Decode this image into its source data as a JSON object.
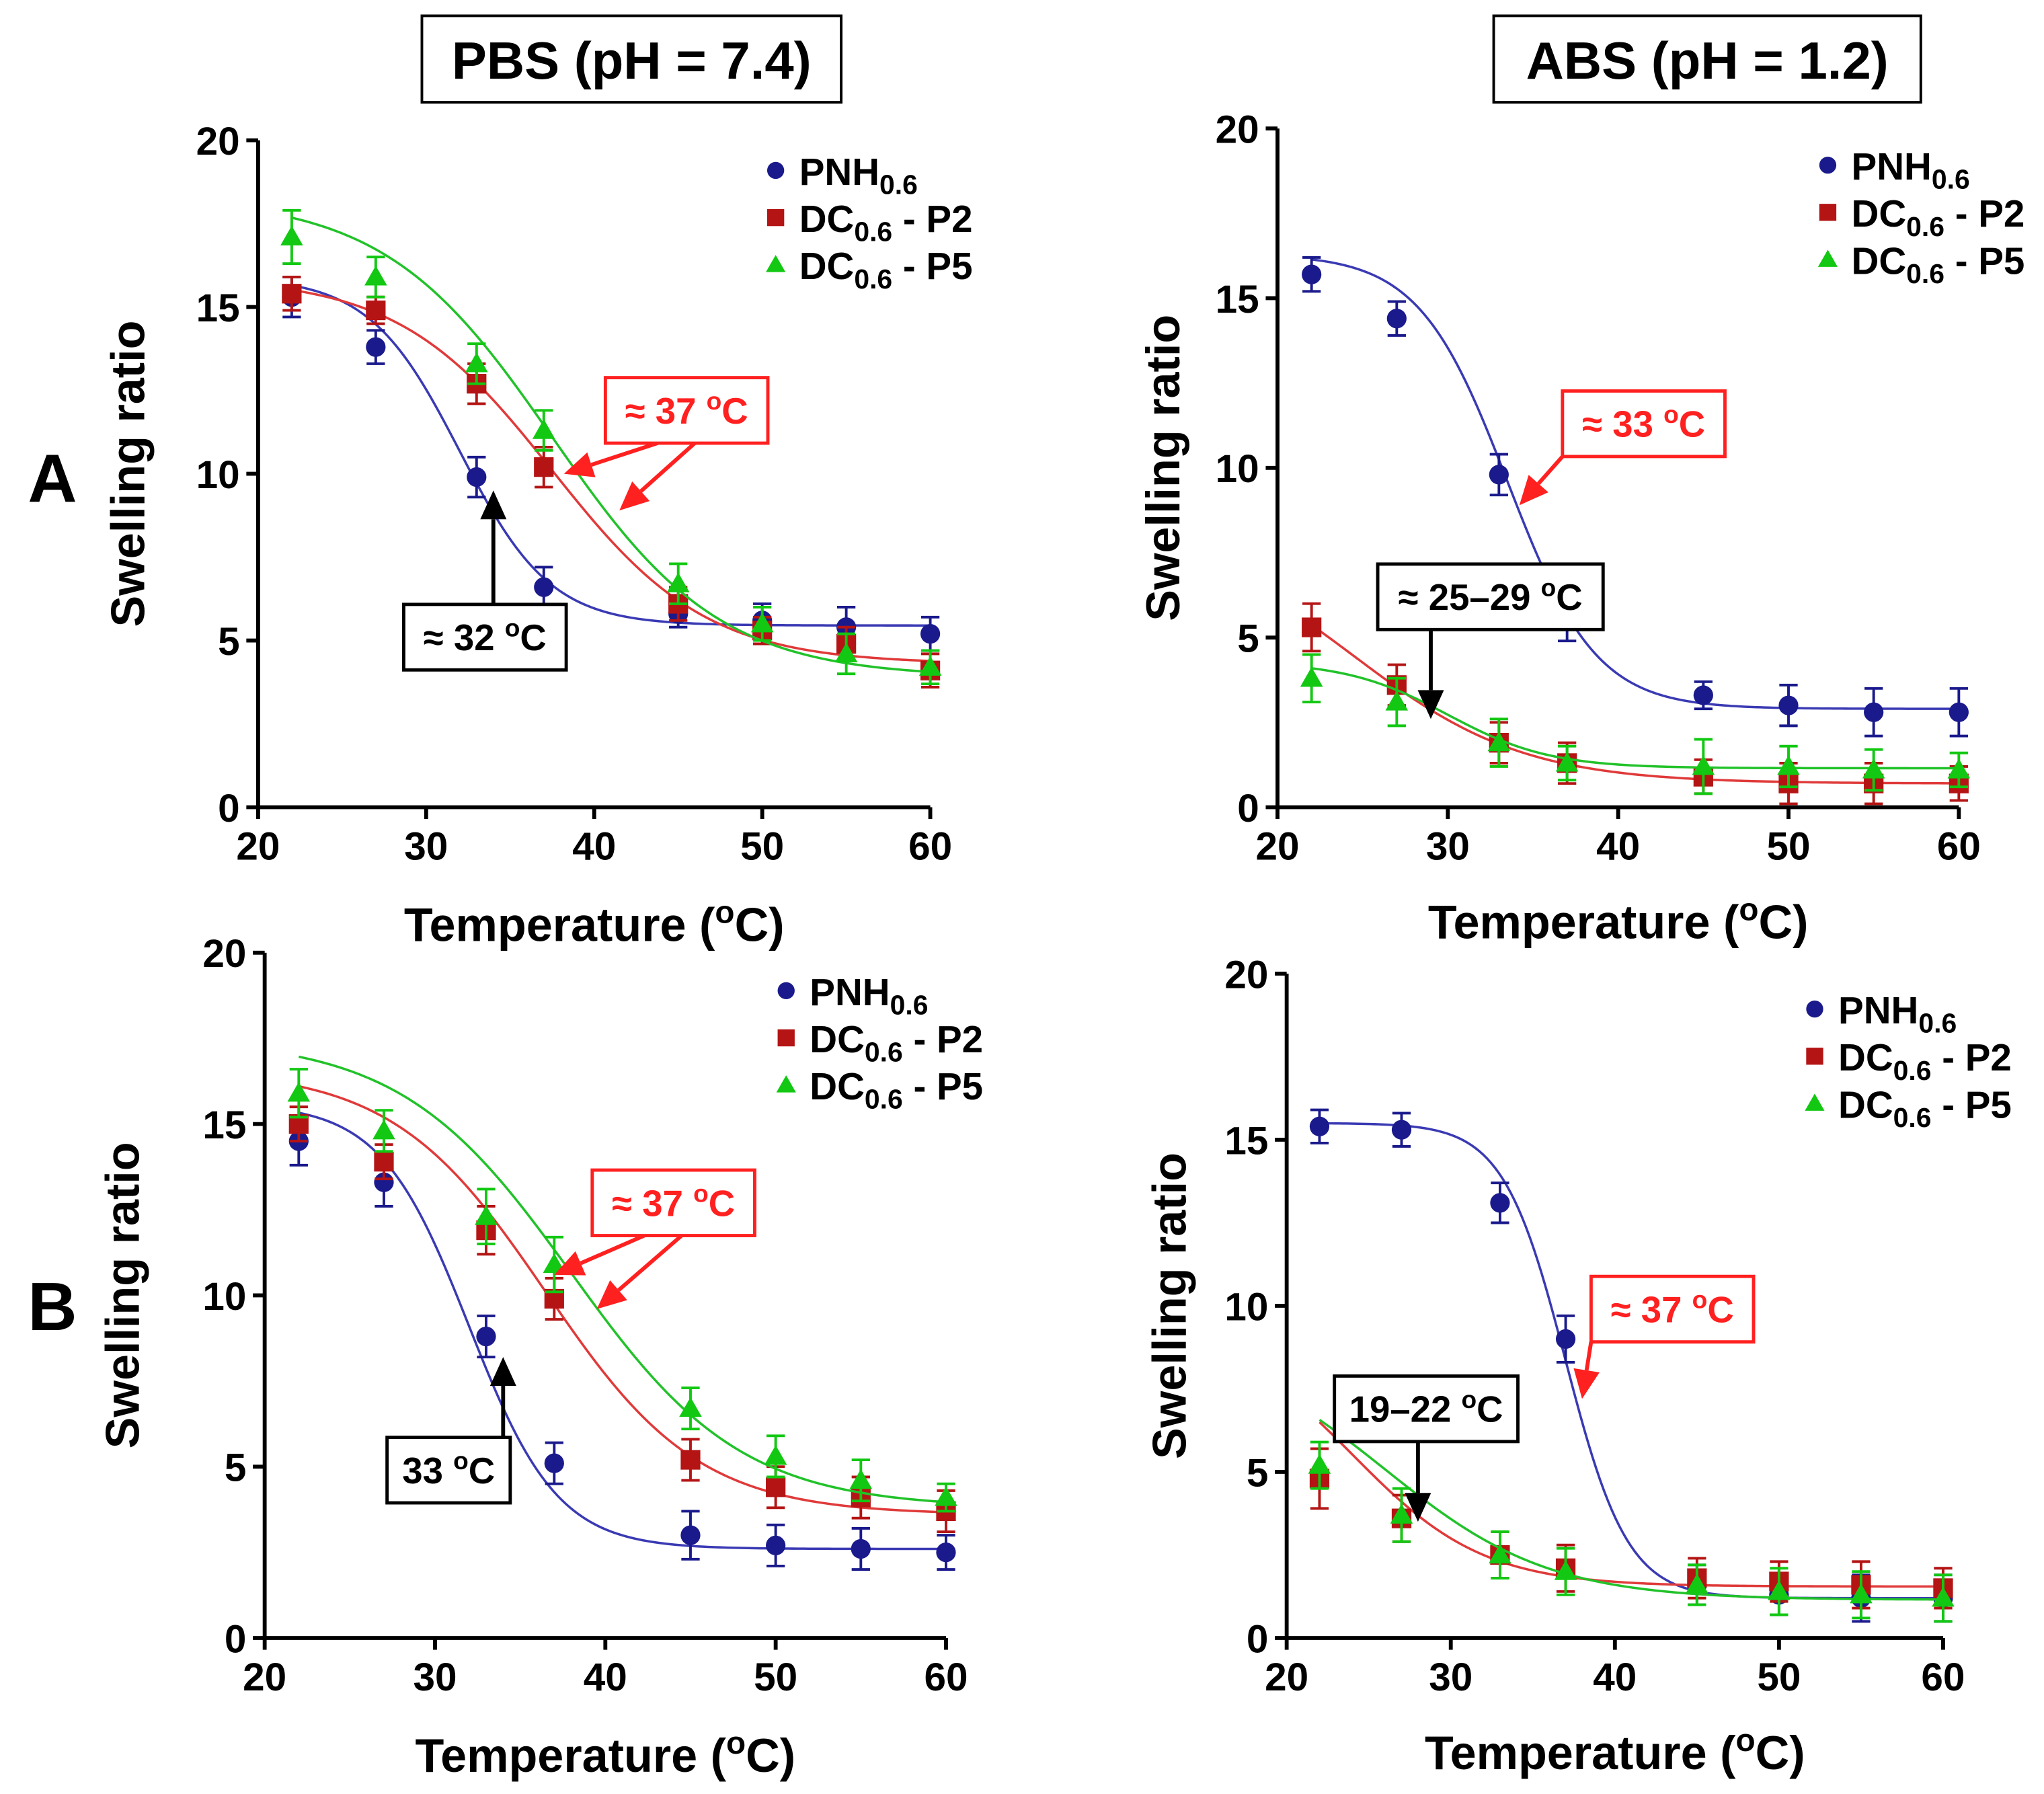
{
  "column_titles": [
    "PBS (pH = 7.4)",
    "ABS (pH = 1.2)"
  ],
  "row_labels": [
    "A",
    "B"
  ],
  "colors": {
    "PNH": "#1a1a8c",
    "P2": "#b41414",
    "P5": "#12c812",
    "annotation_red": "#ff2020",
    "annotation_black": "#000000",
    "curve_PNH": "#3a3ab4",
    "curve_P2": "#e03a3a",
    "curve_P5": "#22c22a"
  },
  "legend_keys": [
    "PNH",
    "P2",
    "P5"
  ],
  "legend": {
    "PNH": {
      "main": "PNH",
      "sub": "0.6",
      "suffix": ""
    },
    "P2": {
      "main": "DC",
      "sub": "0.6",
      "suffix": " - P2"
    },
    "P5": {
      "main": "DC",
      "sub": "0.6",
      "suffix": " - P5"
    }
  },
  "chart_data": [
    {
      "id": "A-PBS",
      "type": "scatter",
      "xlabel": "Temperature (oC)",
      "ylabel": "Swelling ratio",
      "xlim": [
        20,
        60
      ],
      "ylim": [
        0,
        20
      ],
      "xticks": [
        20,
        30,
        40,
        50,
        60
      ],
      "yticks": [
        0,
        5,
        10,
        15,
        20
      ],
      "x": [
        22,
        27,
        33,
        37,
        45,
        50,
        55,
        60
      ],
      "series": [
        {
          "key": "PNH",
          "values": [
            15.3,
            13.8,
            9.9,
            6.6,
            5.8,
            5.6,
            5.4,
            5.2
          ],
          "errors": [
            0.6,
            0.5,
            0.6,
            0.6,
            0.4,
            0.5,
            0.6,
            0.5
          ],
          "fit": {
            "min": 5.45,
            "max": 15.9,
            "x0": 32,
            "slope": 2.7
          }
        },
        {
          "key": "P2",
          "values": [
            15.4,
            14.9,
            12.7,
            10.2,
            6.1,
            5.3,
            4.9,
            4.1
          ],
          "errors": [
            0.5,
            0.4,
            0.6,
            0.6,
            0.5,
            0.4,
            0.5,
            0.5
          ],
          "fit": {
            "min": 4.3,
            "max": 15.9,
            "x0": 37.5,
            "slope": 4.6
          }
        },
        {
          "key": "P5",
          "values": [
            17.1,
            15.9,
            13.3,
            11.3,
            6.7,
            5.5,
            4.6,
            4.2
          ],
          "errors": [
            0.8,
            0.6,
            0.6,
            0.6,
            0.6,
            0.5,
            0.6,
            0.5
          ],
          "fit": {
            "min": 3.9,
            "max": 18.3,
            "x0": 37.5,
            "slope": 5.0
          }
        }
      ],
      "annotations": [
        {
          "text": "≈ 32 oC",
          "color": "black",
          "box": [
            33.5,
            5.1
          ],
          "tip": [
            34,
            9.5
          ]
        },
        {
          "text": "≈ 37 oC",
          "color": "red",
          "box": [
            45.5,
            11.9
          ],
          "tips": [
            [
              38.2,
              10.0
            ],
            [
              41.5,
              8.9
            ]
          ]
        }
      ]
    },
    {
      "id": "A-ABS",
      "type": "scatter",
      "xlabel": "Temperature (oC)",
      "ylabel": "Swelling ratio",
      "xlim": [
        20,
        60
      ],
      "ylim": [
        0,
        20
      ],
      "xticks": [
        20,
        30,
        40,
        50,
        60
      ],
      "yticks": [
        0,
        5,
        10,
        15,
        20
      ],
      "x": [
        22,
        27,
        33,
        37,
        45,
        50,
        55,
        60
      ],
      "series": [
        {
          "key": "PNH",
          "values": [
            15.7,
            14.4,
            9.8,
            5.6,
            3.3,
            3.0,
            2.8,
            2.8
          ],
          "errors": [
            0.5,
            0.5,
            0.6,
            0.7,
            0.4,
            0.6,
            0.7,
            0.7
          ],
          "fit": {
            "min": 2.9,
            "max": 16.3,
            "x0": 33.5,
            "slope": 2.6
          }
        },
        {
          "key": "P2",
          "values": [
            5.3,
            3.6,
            1.9,
            1.3,
            0.9,
            0.7,
            0.7,
            0.7
          ],
          "errors": [
            0.7,
            0.6,
            0.6,
            0.6,
            0.5,
            0.6,
            0.6,
            0.5
          ],
          "fit": {
            "min": 0.7,
            "max": 8.2,
            "x0": 24.5,
            "slope": 5.0
          }
        },
        {
          "key": "P5",
          "values": [
            3.8,
            3.1,
            1.9,
            1.3,
            1.2,
            1.2,
            1.1,
            1.1
          ],
          "errors": [
            0.7,
            0.7,
            0.7,
            0.5,
            0.8,
            0.6,
            0.6,
            0.5
          ],
          "fit": {
            "min": 1.15,
            "max": 4.3,
            "x0": 30.0,
            "slope": 3.0
          }
        }
      ],
      "annotations": [
        {
          "text": "≈ 33 oC",
          "color": "red",
          "box": [
            41.5,
            11.3
          ],
          "tip": [
            34.2,
            8.9
          ]
        },
        {
          "text": "≈ 25–29 oC",
          "color": "black",
          "box": [
            32.5,
            6.2
          ],
          "tip": [
            29.0,
            2.6
          ]
        }
      ]
    },
    {
      "id": "B-PBS",
      "type": "scatter",
      "xlabel": "Temperature (oC)",
      "ylabel": "Swelling ratio",
      "xlim": [
        20,
        60
      ],
      "ylim": [
        0,
        20
      ],
      "xticks": [
        20,
        30,
        40,
        50,
        60
      ],
      "yticks": [
        0,
        5,
        10,
        15,
        20
      ],
      "x": [
        22,
        27,
        33,
        37,
        45,
        50,
        55,
        60
      ],
      "series": [
        {
          "key": "PNH",
          "values": [
            14.5,
            13.3,
            8.8,
            5.1,
            3.0,
            2.7,
            2.6,
            2.5
          ],
          "errors": [
            0.7,
            0.7,
            0.6,
            0.6,
            0.7,
            0.6,
            0.6,
            0.5
          ],
          "fit": {
            "min": 2.6,
            "max": 15.6,
            "x0": 32.0,
            "slope": 2.6
          }
        },
        {
          "key": "P2",
          "values": [
            15.0,
            13.9,
            11.9,
            9.9,
            5.2,
            4.4,
            4.1,
            3.7
          ],
          "errors": [
            0.5,
            0.5,
            0.7,
            0.6,
            0.6,
            0.6,
            0.6,
            0.6
          ],
          "fit": {
            "min": 3.6,
            "max": 16.6,
            "x0": 36.5,
            "slope": 4.5
          }
        },
        {
          "key": "P5",
          "values": [
            15.9,
            14.8,
            12.3,
            10.9,
            6.7,
            5.3,
            4.6,
            4.1
          ],
          "errors": [
            0.7,
            0.6,
            0.8,
            0.8,
            0.6,
            0.6,
            0.6,
            0.4
          ],
          "fit": {
            "min": 3.8,
            "max": 17.5,
            "x0": 38.0,
            "slope": 5.0
          }
        }
      ],
      "annotations": [
        {
          "text": "33 oC",
          "color": "black",
          "box": [
            30.8,
            4.9
          ],
          "tip": [
            34,
            8.2
          ]
        },
        {
          "text": "≈ 37 oC",
          "color": "red",
          "box": [
            44.0,
            12.7
          ],
          "tips": [
            [
              37.0,
              10.6
            ],
            [
              39.5,
              9.6
            ]
          ]
        }
      ]
    },
    {
      "id": "B-ABS",
      "type": "scatter",
      "xlabel": "Temperature (oC)",
      "ylabel": "Swelling ratio",
      "xlim": [
        20,
        60
      ],
      "ylim": [
        0,
        20
      ],
      "xticks": [
        20,
        30,
        40,
        50,
        60
      ],
      "yticks": [
        0,
        5,
        10,
        15,
        20
      ],
      "x": [
        22,
        27,
        33,
        37,
        45,
        50,
        55,
        60
      ],
      "series": [
        {
          "key": "PNH",
          "values": [
            15.4,
            15.3,
            13.1,
            9.0,
            1.6,
            1.3,
            1.2,
            1.2
          ],
          "errors": [
            0.5,
            0.5,
            0.6,
            0.7,
            0.6,
            0.6,
            0.7,
            0.7
          ],
          "fit": {
            "min": 1.2,
            "max": 15.5,
            "x0": 37.0,
            "slope": 1.9
          }
        },
        {
          "key": "P2",
          "values": [
            4.8,
            3.6,
            2.5,
            2.1,
            1.8,
            1.7,
            1.6,
            1.5
          ],
          "errors": [
            0.9,
            0.7,
            0.7,
            0.7,
            0.6,
            0.6,
            0.7,
            0.6
          ],
          "fit": {
            "min": 1.55,
            "max": 9.5,
            "x0": 24.0,
            "slope": 4.0
          }
        },
        {
          "key": "P5",
          "values": [
            5.2,
            3.7,
            2.5,
            2.0,
            1.6,
            1.4,
            1.3,
            1.2
          ],
          "errors": [
            0.7,
            0.8,
            0.7,
            0.7,
            0.6,
            0.7,
            0.7,
            0.7
          ],
          "fit": {
            "min": 1.15,
            "max": 9.0,
            "x0": 26.0,
            "slope": 5.0
          }
        }
      ],
      "annotations": [
        {
          "text": "≈ 37 oC",
          "color": "red",
          "box": [
            43.5,
            9.9
          ],
          "tip": [
            38.0,
            7.2
          ]
        },
        {
          "text": "19–22 oC",
          "color": "black",
          "box": [
            28.5,
            6.9
          ],
          "tip": [
            28.0,
            3.5
          ]
        }
      ]
    }
  ]
}
